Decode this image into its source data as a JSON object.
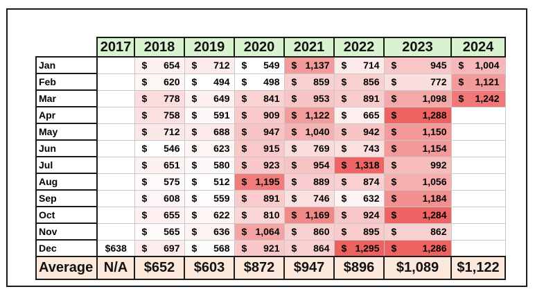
{
  "years": [
    "2017",
    "2018",
    "2019",
    "2020",
    "2021",
    "2022",
    "2023",
    "2024"
  ],
  "rows": [
    {
      "month": "Jan",
      "values": [
        "",
        "654",
        "712",
        "549",
        "1,137",
        "714",
        "945",
        "1,004"
      ],
      "colors": [
        "",
        "#fef1f1",
        "#fdeaea",
        "#ffffff",
        "#f39a9a",
        "#fdeaea",
        "#f8c6c6",
        "#f6b8b8"
      ]
    },
    {
      "month": "Feb",
      "values": [
        "",
        "620",
        "494",
        "498",
        "859",
        "856",
        "772",
        "1,121"
      ],
      "colors": [
        "",
        "#fef5f5",
        "#ffffff",
        "#ffffff",
        "#f9d0d0",
        "#f9d0d0",
        "#fbdfdf",
        "#f39a9a"
      ]
    },
    {
      "month": "Mar",
      "values": [
        "",
        "778",
        "649",
        "841",
        "953",
        "891",
        "1,098",
        "1,242"
      ],
      "colors": [
        "",
        "#fcdcdc",
        "#fef1f1",
        "#fad2d2",
        "#f8c4c4",
        "#f9cbcb",
        "#f5a8a8",
        "#f07878"
      ]
    },
    {
      "month": "Apr",
      "values": [
        "",
        "758",
        "591",
        "909",
        "1,122",
        "665",
        "1,288",
        ""
      ],
      "colors": [
        "",
        "#fce0e0",
        "#fef8f8",
        "#f9c9c9",
        "#f39c9c",
        "#feefef",
        "#ee6262",
        ""
      ]
    },
    {
      "month": "May",
      "values": [
        "",
        "712",
        "688",
        "947",
        "1,040",
        "942",
        "1,150",
        ""
      ],
      "colors": [
        "",
        "#fde8e8",
        "#fdeaea",
        "#f8c3c3",
        "#f6b2b2",
        "#f8c4c4",
        "#f49a9a",
        ""
      ]
    },
    {
      "month": "Jun",
      "values": [
        "",
        "546",
        "623",
        "915",
        "769",
        "743",
        "1,154",
        ""
      ],
      "colors": [
        "",
        "#ffffff",
        "#fef5f5",
        "#f9c8c8",
        "#fbdcdc",
        "#fbe0e0",
        "#f49a9a",
        ""
      ]
    },
    {
      "month": "Jul",
      "values": [
        "",
        "651",
        "580",
        "923",
        "954",
        "1,318",
        "992",
        ""
      ],
      "colors": [
        "",
        "#fef1f1",
        "#fef9f9",
        "#f9c7c7",
        "#f8c3c3",
        "#ef6464",
        "#f7bdbd",
        ""
      ]
    },
    {
      "month": "Aug",
      "values": [
        "",
        "575",
        "512",
        "1,195",
        "889",
        "874",
        "1,056",
        ""
      ],
      "colors": [
        "",
        "#fefafa",
        "#ffffff",
        "#f07c7c",
        "#f9ccd0",
        "#f9cfcf",
        "#f6aeae",
        ""
      ]
    },
    {
      "month": "Sep",
      "values": [
        "",
        "608",
        "559",
        "891",
        "746",
        "632",
        "1,184",
        ""
      ],
      "colors": [
        "",
        "#fef6f6",
        "#fefcfc",
        "#f9cbcb",
        "#fbe0e0",
        "#fef4f4",
        "#f39090",
        ""
      ]
    },
    {
      "month": "Oct",
      "values": [
        "",
        "655",
        "622",
        "810",
        "1,169",
        "924",
        "1,284",
        ""
      ],
      "colors": [
        "",
        "#fef0f0",
        "#fef5f5",
        "#fad6d6",
        "#f28989",
        "#f8c6c6",
        "#ee6363",
        ""
      ]
    },
    {
      "month": "Nov",
      "values": [
        "",
        "565",
        "636",
        "1,064",
        "860",
        "895",
        "862",
        ""
      ],
      "colors": [
        "",
        "#fefbfb",
        "#fef3f3",
        "#f4a4a4",
        "#f9d0d0",
        "#f9cbcb",
        "#f9d0d0",
        ""
      ]
    },
    {
      "month": "Dec",
      "values": [
        "$638",
        "697",
        "568",
        "921",
        "864",
        "1,295",
        "1,286",
        ""
      ],
      "colors": [
        "#ffffff",
        "#feebeb",
        "#fefbfb",
        "#f9c7c7",
        "#f9cfcf",
        "#ee6161",
        "#ee6262",
        ""
      ]
    }
  ],
  "average": {
    "label": "Average",
    "values": [
      "N/A",
      "$652",
      "$603",
      "$872",
      "$947",
      "$896",
      "$1,089",
      "$1,122"
    ]
  },
  "currency_symbol": "$"
}
